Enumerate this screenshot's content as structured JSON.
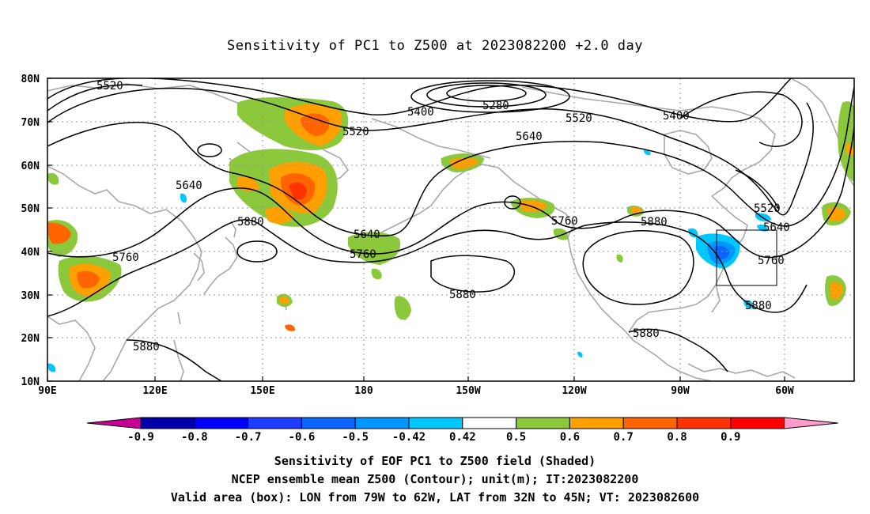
{
  "title": "Sensitivity of PC1 to Z500 at 2023082200 +2.0 day",
  "map": {
    "lat_labels": [
      "80N",
      "70N",
      "60N",
      "50N",
      "40N",
      "30N",
      "20N",
      "10N"
    ],
    "lon_labels": [
      "90E",
      "120E",
      "150E",
      "180",
      "150W",
      "120W",
      "90W",
      "60W"
    ],
    "contour_labels": [
      "5520",
      "5400",
      "5280",
      "5520",
      "5400",
      "5520",
      "5640",
      "5640",
      "5520",
      "5640",
      "5880",
      "5640",
      "5760",
      "5760",
      "5760",
      "5880",
      "5880",
      "5760",
      "5880",
      "5880",
      "5880"
    ]
  },
  "colorbar": {
    "labels": [
      "-0.9",
      "-0.8",
      "-0.7",
      "-0.6",
      "-0.5",
      "-0.42",
      "0.42",
      "0.5",
      "0.6",
      "0.7",
      "0.8",
      "0.9"
    ],
    "colors": [
      "#0000aa",
      "#0000ff",
      "#1e3cff",
      "#0a64ff",
      "#0096ff",
      "#00c8ff",
      "#ffffff",
      "#8cc83c",
      "#ffa000",
      "#ff6400",
      "#ff3200",
      "#ff0000"
    ],
    "low_end_color": "#c80096",
    "high_end_color": "#ff9bc8"
  },
  "footer": {
    "line1": "Sensitivity of EOF PC1 to Z500 field (Shaded)",
    "line2": "NCEP ensemble mean Z500 (Contour); unit(m); IT:2023082200",
    "line3": "Valid area (box): LON from 79W to 62W, LAT from 32N to 45N; VT: 2023082600"
  }
}
